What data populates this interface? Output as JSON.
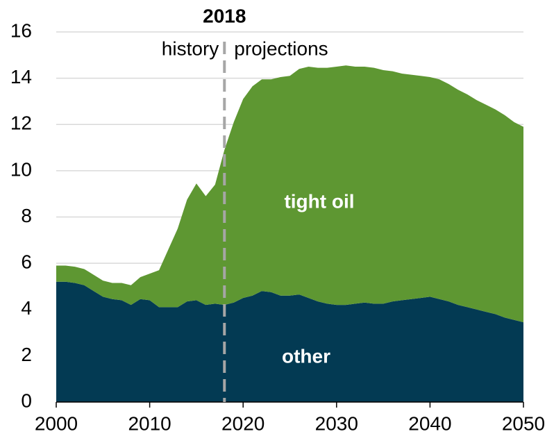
{
  "chart_data": {
    "type": "stacked_area",
    "x": [
      2000,
      2001,
      2002,
      2003,
      2004,
      2005,
      2006,
      2007,
      2008,
      2009,
      2010,
      2011,
      2012,
      2013,
      2014,
      2015,
      2016,
      2017,
      2018,
      2019,
      2020,
      2021,
      2022,
      2023,
      2024,
      2025,
      2026,
      2027,
      2028,
      2029,
      2030,
      2031,
      2032,
      2033,
      2034,
      2035,
      2036,
      2037,
      2038,
      2039,
      2040,
      2041,
      2042,
      2043,
      2044,
      2045,
      2046,
      2047,
      2048,
      2049,
      2050
    ],
    "series": [
      {
        "name": "other",
        "color": "#033a53",
        "values": [
          5.2,
          5.2,
          5.15,
          5.05,
          4.8,
          4.55,
          4.45,
          4.4,
          4.2,
          4.45,
          4.4,
          4.1,
          4.1,
          4.1,
          4.35,
          4.4,
          4.2,
          4.25,
          4.2,
          4.3,
          4.5,
          4.6,
          4.8,
          4.75,
          4.6,
          4.6,
          4.65,
          4.5,
          4.35,
          4.25,
          4.2,
          4.2,
          4.25,
          4.3,
          4.25,
          4.25,
          4.35,
          4.4,
          4.45,
          4.5,
          4.55,
          4.45,
          4.35,
          4.2,
          4.1,
          4.0,
          3.9,
          3.8,
          3.65,
          3.55,
          3.45
        ]
      },
      {
        "name": "tight oil",
        "color": "#5e9732",
        "values": [
          0.7,
          0.7,
          0.7,
          0.7,
          0.7,
          0.7,
          0.7,
          0.75,
          0.85,
          0.95,
          1.15,
          1.6,
          2.5,
          3.4,
          4.4,
          5.05,
          4.7,
          5.15,
          6.7,
          7.8,
          8.6,
          9.05,
          9.15,
          9.2,
          9.45,
          9.5,
          9.75,
          10.0,
          10.1,
          10.2,
          10.3,
          10.35,
          10.25,
          10.2,
          10.2,
          10.1,
          9.95,
          9.8,
          9.7,
          9.6,
          9.5,
          9.5,
          9.4,
          9.3,
          9.2,
          9.05,
          8.95,
          8.85,
          8.75,
          8.55,
          8.45
        ]
      }
    ],
    "xlim": [
      2000,
      2050
    ],
    "xticks": [
      2000,
      2010,
      2020,
      2030,
      2040,
      2050
    ],
    "ylim": [
      0,
      16
    ],
    "yticks": [
      0,
      2,
      4,
      6,
      8,
      10,
      12,
      14,
      16
    ],
    "grid": true,
    "divider": 2018,
    "divider_left_label": "history",
    "divider_right_label": "projections"
  }
}
